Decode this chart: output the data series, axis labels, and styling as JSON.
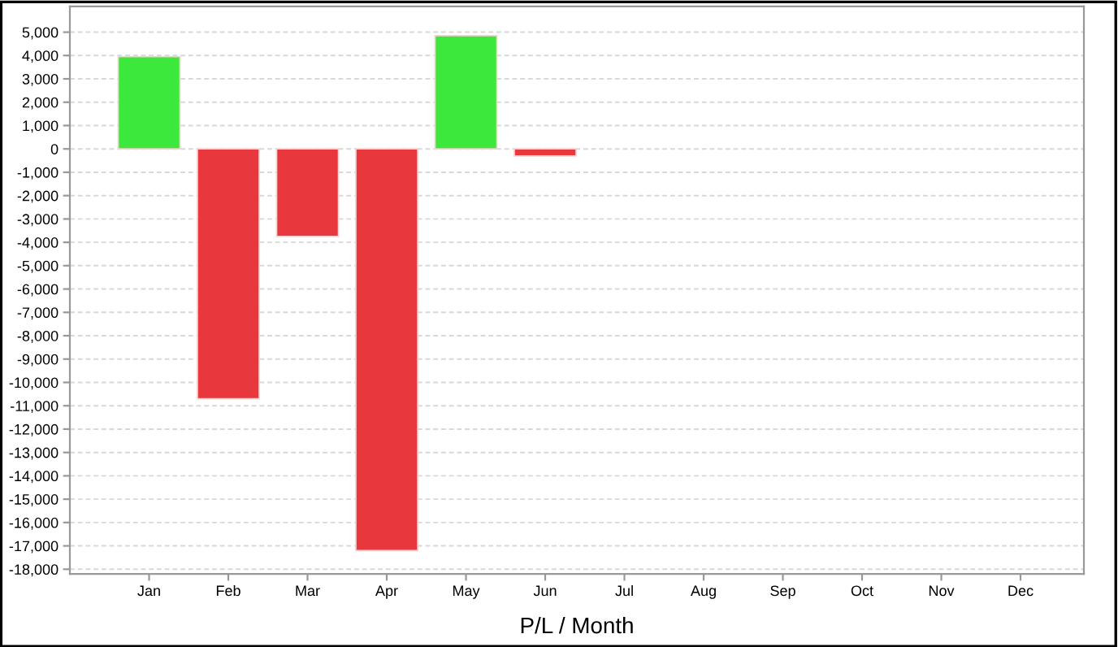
{
  "chart_data": {
    "type": "bar",
    "xlabel": "P/L / Month",
    "categories": [
      "Jan",
      "Feb",
      "Mar",
      "Apr",
      "May",
      "Jun",
      "Jul",
      "Aug",
      "Sep",
      "Oct",
      "Nov",
      "Dec"
    ],
    "values": [
      3950,
      -10700,
      -3750,
      -17200,
      4850,
      -300,
      null,
      null,
      null,
      null,
      null,
      null
    ],
    "colors": [
      "#3de83d",
      "#e8383d",
      "#e8383d",
      "#e8383d",
      "#3de83d",
      "#e8383d",
      null,
      null,
      null,
      null,
      null,
      null
    ],
    "ylim": [
      -18200,
      6100
    ],
    "yticks": [
      {
        "value": 5000,
        "label": "5,000"
      },
      {
        "value": 4000,
        "label": "4,000"
      },
      {
        "value": 3000,
        "label": "3,000"
      },
      {
        "value": 2000,
        "label": "2,000"
      },
      {
        "value": 1000,
        "label": "1,000"
      },
      0,
      {
        "value": -1000,
        "label": "-1,000"
      },
      {
        "value": -2000,
        "label": "-2,000"
      },
      {
        "value": -3000,
        "label": "-3,000"
      },
      {
        "value": -4000,
        "label": "-4,000"
      },
      {
        "value": -5000,
        "label": "-5,000"
      },
      {
        "value": -6000,
        "label": "-6,000"
      },
      {
        "value": -7000,
        "label": "-7,000"
      },
      {
        "value": -8000,
        "label": "-8,000"
      },
      {
        "value": -9000,
        "label": "-9,000"
      },
      {
        "value": -10000,
        "label": "-10,000"
      },
      {
        "value": -11000,
        "label": "-11,000"
      },
      {
        "value": -12000,
        "label": "-12,000"
      },
      {
        "value": -13000,
        "label": "-13,000"
      },
      {
        "value": -14000,
        "label": "-14,000"
      },
      {
        "value": -15000,
        "label": "-15,000"
      },
      {
        "value": -16000,
        "label": "-16,000"
      },
      {
        "value": -17000,
        "label": "-17,000"
      },
      {
        "value": -18000,
        "label": "-18,000"
      }
    ],
    "grid": "y"
  }
}
